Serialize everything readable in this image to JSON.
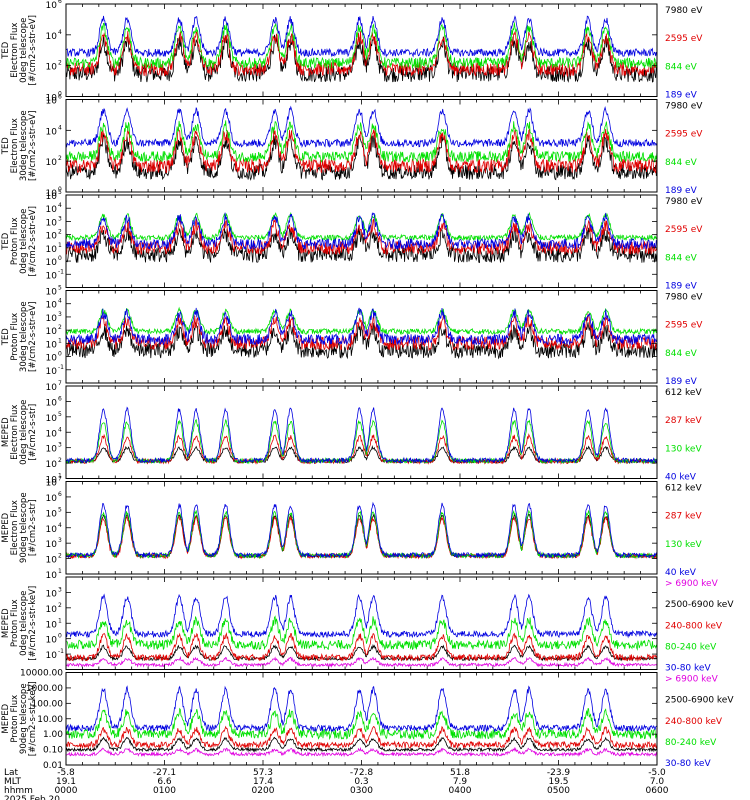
{
  "chart_data": [
    {
      "type": "line",
      "ylabel_lines": [
        "TED",
        "Electron Flux",
        "0deg telescope",
        "[#/cm2-s-str-eV]"
      ],
      "yscale": "log",
      "ylim": [
        1,
        1000000
      ],
      "yticks": [
        {
          "v": 1000000,
          "base": "10",
          "exp": "6"
        },
        {
          "v": 10000,
          "base": "10",
          "exp": "4"
        },
        {
          "v": 100,
          "base": "10",
          "exp": "2"
        },
        {
          "v": 1,
          "base": "10",
          "exp": "0"
        }
      ],
      "series": [
        {
          "name": "7980 eV",
          "color": "#000000",
          "base": 30,
          "peak": 3000,
          "noise": 0.55
        },
        {
          "name": "2595 eV",
          "color": "#e00000",
          "base": 60,
          "peak": 8000,
          "noise": 0.45
        },
        {
          "name": "844 eV",
          "color": "#00e000",
          "base": 150,
          "peak": 30000,
          "noise": 0.35
        },
        {
          "name": "189 eV",
          "color": "#0000e0",
          "base": 700,
          "peak": 100000,
          "noise": 0.25
        }
      ]
    },
    {
      "type": "line",
      "ylabel_lines": [
        "TED",
        "Electron Flux",
        "30deg telescope",
        "[#/cm2-s-str-eV]"
      ],
      "yscale": "log",
      "ylim": [
        1,
        1000000
      ],
      "yticks": [
        {
          "v": 1000000,
          "base": "10",
          "exp": "6"
        },
        {
          "v": 10000,
          "base": "10",
          "exp": "4"
        },
        {
          "v": 100,
          "base": "10",
          "exp": "2"
        },
        {
          "v": 1,
          "base": "10",
          "exp": "0"
        }
      ],
      "series": [
        {
          "name": "7980 eV",
          "color": "#000000",
          "base": 20,
          "peak": 2000,
          "noise": 0.5
        },
        {
          "name": "2595 eV",
          "color": "#e00000",
          "base": 50,
          "peak": 6000,
          "noise": 0.45
        },
        {
          "name": "844 eV",
          "color": "#00e000",
          "base": 200,
          "peak": 20000,
          "noise": 0.35
        },
        {
          "name": "189 eV",
          "color": "#0000e0",
          "base": 1500,
          "peak": 200000,
          "noise": 0.25
        }
      ]
    },
    {
      "type": "line",
      "ylabel_lines": [
        "TED",
        "Proton Flux",
        "0deg telescope",
        "[#/cm2-s-str-eV]"
      ],
      "yscale": "log",
      "ylim": [
        0.01,
        100000
      ],
      "yticks": [
        {
          "v": 100000,
          "base": "10",
          "exp": "5"
        },
        {
          "v": 10000,
          "base": "10",
          "exp": "4"
        },
        {
          "v": 1000,
          "base": "10",
          "exp": "3"
        },
        {
          "v": 100,
          "base": "10",
          "exp": "2"
        },
        {
          "v": 10,
          "base": "10",
          "exp": "1"
        },
        {
          "v": 1,
          "base": "10",
          "exp": "0"
        },
        {
          "v": 0.1,
          "base": "10",
          "exp": "-1"
        }
      ],
      "series": [
        {
          "name": "7980 eV",
          "color": "#000000",
          "base": 3,
          "peak": 100,
          "noise": 0.6
        },
        {
          "name": "2595 eV",
          "color": "#e00000",
          "base": 10,
          "peak": 500,
          "noise": 0.5
        },
        {
          "name": "844 eV",
          "color": "#00e000",
          "base": 60,
          "peak": 3000,
          "noise": 0.2
        },
        {
          "name": "189 eV",
          "color": "#0000e0",
          "base": 20,
          "peak": 2000,
          "noise": 0.4
        }
      ]
    },
    {
      "type": "line",
      "ylabel_lines": [
        "TED",
        "Proton Flux",
        "30deg telescope",
        "[#/cm2-s-str-eV]"
      ],
      "yscale": "log",
      "ylim": [
        0.01,
        100000
      ],
      "yticks": [
        {
          "v": 100000,
          "base": "10",
          "exp": "5"
        },
        {
          "v": 10000,
          "base": "10",
          "exp": "4"
        },
        {
          "v": 1000,
          "base": "10",
          "exp": "3"
        },
        {
          "v": 100,
          "base": "10",
          "exp": "2"
        },
        {
          "v": 10,
          "base": "10",
          "exp": "1"
        },
        {
          "v": 1,
          "base": "10",
          "exp": "0"
        },
        {
          "v": 0.1,
          "base": "10",
          "exp": "-1"
        }
      ],
      "series": [
        {
          "name": "7980 eV",
          "color": "#000000",
          "base": 3,
          "peak": 100,
          "noise": 0.6
        },
        {
          "name": "2595 eV",
          "color": "#e00000",
          "base": 10,
          "peak": 500,
          "noise": 0.5
        },
        {
          "name": "844 eV",
          "color": "#00e000",
          "base": 80,
          "peak": 3000,
          "noise": 0.2
        },
        {
          "name": "189 eV",
          "color": "#0000e0",
          "base": 20,
          "peak": 2000,
          "noise": 0.4
        }
      ]
    },
    {
      "type": "line",
      "ylabel_lines": [
        "MEPED",
        "Electron Flux",
        "0deg telescope",
        "[#/cm2-s-str]"
      ],
      "yscale": "log",
      "ylim": [
        10,
        10000000
      ],
      "yticks": [
        {
          "v": 10000000,
          "base": "10",
          "exp": "7"
        },
        {
          "v": 1000000,
          "base": "10",
          "exp": "6"
        },
        {
          "v": 100000,
          "base": "10",
          "exp": "5"
        },
        {
          "v": 10000,
          "base": "10",
          "exp": "4"
        },
        {
          "v": 1000,
          "base": "10",
          "exp": "3"
        },
        {
          "v": 100,
          "base": "10",
          "exp": "2"
        },
        {
          "v": 10,
          "base": "10",
          "exp": "1"
        }
      ],
      "series": [
        {
          "name": "612 keV",
          "color": "#000000",
          "base": 130,
          "peak": 1000,
          "noise": 0.1
        },
        {
          "name": "287 keV",
          "color": "#e00000",
          "base": 130,
          "peak": 5000,
          "noise": 0.15
        },
        {
          "name": "130 keV",
          "color": "#00e000",
          "base": 140,
          "peak": 50000,
          "noise": 0.15
        },
        {
          "name": "40 keV",
          "color": "#0000e0",
          "base": 150,
          "peak": 300000,
          "noise": 0.15
        }
      ]
    },
    {
      "type": "line",
      "ylabel_lines": [
        "MEPED",
        "Electron Flux",
        "90deg telescope",
        "[#/cm2-s-str]"
      ],
      "yscale": "log",
      "ylim": [
        10,
        10000000
      ],
      "yticks": [
        {
          "v": 10000000,
          "base": "10",
          "exp": "7"
        },
        {
          "v": 1000000,
          "base": "10",
          "exp": "6"
        },
        {
          "v": 100000,
          "base": "10",
          "exp": "5"
        },
        {
          "v": 10000,
          "base": "10",
          "exp": "4"
        },
        {
          "v": 1000,
          "base": "10",
          "exp": "3"
        },
        {
          "v": 100,
          "base": "10",
          "exp": "2"
        },
        {
          "v": 10,
          "base": "10",
          "exp": "1"
        }
      ],
      "series": [
        {
          "name": "612 keV",
          "color": "#000000",
          "base": 150,
          "peak": 60000,
          "noise": 0.1
        },
        {
          "name": "287 keV",
          "color": "#e00000",
          "base": 150,
          "peak": 40000,
          "noise": 0.15
        },
        {
          "name": "130 keV",
          "color": "#00e000",
          "base": 160,
          "peak": 100000,
          "noise": 0.15
        },
        {
          "name": "40 keV",
          "color": "#0000e0",
          "base": 170,
          "peak": 300000,
          "noise": 0.15
        }
      ]
    },
    {
      "type": "line",
      "ylabel_lines": [
        "MEPED",
        "Proton Flux",
        "0deg telescope",
        "[#/cm2-s-str-keV]"
      ],
      "yscale": "log",
      "ylim": [
        0.01,
        10000
      ],
      "yticks": [
        {
          "v": 1000,
          "base": "10",
          "exp": "3"
        },
        {
          "v": 100,
          "base": "10",
          "exp": "2"
        },
        {
          "v": 10,
          "base": "10",
          "exp": "1"
        },
        {
          "v": 1,
          "base": "10",
          "exp": "0"
        },
        {
          "v": 0.1,
          "base": "10",
          "exp": "-1"
        }
      ],
      "series": [
        {
          "name": "> 6900 keV",
          "color": "#e000e0",
          "base": 0.02,
          "peak": 0.05,
          "noise": 0.1
        },
        {
          "name": "2500-6900 keV",
          "color": "#000000",
          "base": 0.05,
          "peak": 0.3,
          "noise": 0.1
        },
        {
          "name": "240-800 keV",
          "color": "#e00000",
          "base": 0.06,
          "peak": 1.5,
          "noise": 0.2
        },
        {
          "name": "80-240 keV",
          "color": "#00e000",
          "base": 0.4,
          "peak": 15,
          "noise": 0.3
        },
        {
          "name": "30-80 keV",
          "color": "#0000e0",
          "base": 2,
          "peak": 500,
          "noise": 0.2
        }
      ]
    },
    {
      "type": "line",
      "ylabel_lines": [
        "MEPED",
        "Proton Flux",
        "90deg telescope",
        "[#/cm2-s-str-keV]"
      ],
      "yscale": "log",
      "ylim": [
        0.01,
        10000
      ],
      "yticks": [
        {
          "v": 10000,
          "label": "10000.00"
        },
        {
          "v": 1000,
          "label": "1000.00"
        },
        {
          "v": 100,
          "label": "100.00"
        },
        {
          "v": 10,
          "label": "10.00"
        },
        {
          "v": 1,
          "label": "1.00"
        },
        {
          "v": 0.1,
          "label": "0.10"
        },
        {
          "v": 0.01,
          "label": "0.01"
        }
      ],
      "series": [
        {
          "name": "> 6900 keV",
          "color": "#e000e0",
          "base": 0.05,
          "peak": 0.1,
          "noise": 0.1
        },
        {
          "name": "2500-6900 keV",
          "color": "#000000",
          "base": 0.1,
          "peak": 0.5,
          "noise": 0.1
        },
        {
          "name": "240-800 keV",
          "color": "#e00000",
          "base": 0.2,
          "peak": 2,
          "noise": 0.2
        },
        {
          "name": "80-240 keV",
          "color": "#00e000",
          "base": 1,
          "peak": 25,
          "noise": 0.3
        },
        {
          "name": "30-80 keV",
          "color": "#0000e0",
          "base": 2.5,
          "peak": 800,
          "noise": 0.2
        }
      ]
    }
  ],
  "time_axis": {
    "start_label": "0000",
    "end_label": "0600",
    "row_labels": [
      "Lat",
      "MLT",
      "hhmm"
    ],
    "ticks": [
      {
        "lat": "-5.8",
        "mlt": "19.1",
        "hhmm": "0000"
      },
      {
        "lat": "-27.1",
        "mlt": "6.6",
        "hhmm": "0100"
      },
      {
        "lat": "57.3",
        "mlt": "17.4",
        "hhmm": "0200"
      },
      {
        "lat": "-72.8",
        "mlt": "0.3",
        "hhmm": "0300"
      },
      {
        "lat": "51.8",
        "mlt": "7.9",
        "hhmm": "0400"
      },
      {
        "lat": "-23.9",
        "mlt": "19.5",
        "hhmm": "0500"
      },
      {
        "lat": "-5.0",
        "mlt": "7.0",
        "hhmm": "0600"
      }
    ],
    "date": "2025 Feb 20"
  },
  "pass_centers_hours": [
    0.38,
    0.62,
    1.15,
    1.32,
    1.62,
    2.12,
    2.28,
    2.98,
    3.12,
    3.82,
    4.55,
    4.7,
    5.3,
    5.48
  ],
  "colors": {
    "black": "#000000",
    "red": "#e00000",
    "green": "#00e000",
    "blue": "#0000e0",
    "magenta": "#e000e0"
  }
}
